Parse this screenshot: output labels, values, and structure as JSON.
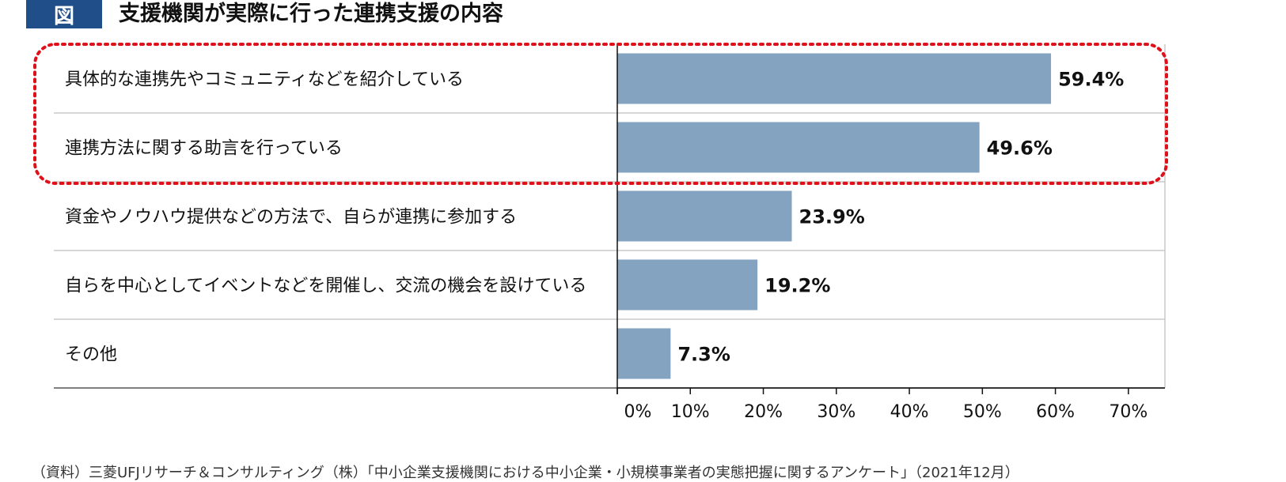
{
  "header": {
    "badge": "図",
    "title": "支援機関が実際に行った連携支援の内容"
  },
  "source": "（資料）三菱UFJリサーチ＆コンサルティング（株）「中小企業支援機関における中小企業・小規模事業者の実態把握に関するアンケート」（2021年12月）",
  "colors": {
    "bar": "#83a3c0",
    "highlight": "#e0101a",
    "badge": "#1f4e89"
  },
  "chart_data": {
    "type": "bar",
    "orientation": "horizontal",
    "categories": [
      "具体的な連携先やコミュニティなどを紹介している",
      "連携方法に関する助言を行っている",
      "資金やノウハウ提供などの方法で、自らが連携に参加する",
      "自らを中心としてイベントなどを開催し、交流の機会を設けている",
      "その他"
    ],
    "values": [
      59.4,
      49.6,
      23.9,
      19.2,
      7.3
    ],
    "value_labels": [
      "59.4%",
      "49.6%",
      "23.9%",
      "19.2%",
      "7.3%"
    ],
    "xlim": [
      0,
      75
    ],
    "xticks": [
      0,
      10,
      20,
      30,
      40,
      50,
      60,
      70
    ],
    "xtick_labels": [
      "0%",
      "10%",
      "20%",
      "30%",
      "40%",
      "50%",
      "60%",
      "70%"
    ],
    "highlighted_categories": [
      0,
      1
    ],
    "grid": false,
    "legend": "none"
  }
}
